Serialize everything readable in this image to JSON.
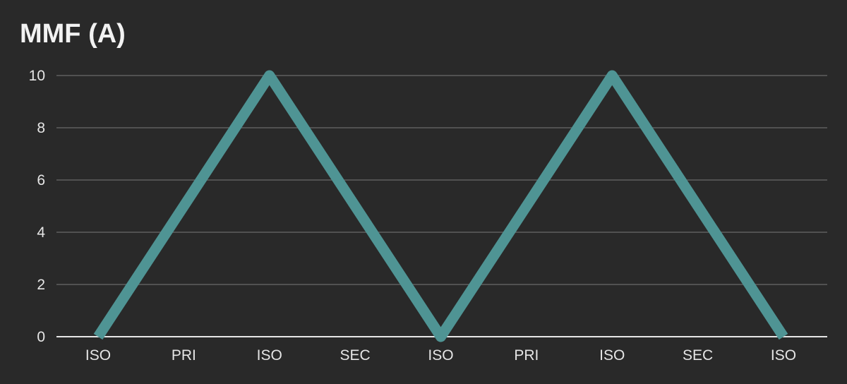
{
  "chart_data": {
    "type": "line",
    "title": "MMF (A)",
    "xlabel": "",
    "ylabel": "",
    "categories": [
      "ISO",
      "PRI",
      "ISO",
      "SEC",
      "ISO",
      "PRI",
      "ISO",
      "SEC",
      "ISO"
    ],
    "series": [
      {
        "values": [
          0,
          5,
          10,
          5,
          0,
          5,
          10,
          5,
          0
        ],
        "color": "#4f9494"
      }
    ],
    "ylim": [
      0,
      10
    ],
    "yticks": [
      0,
      2,
      4,
      6,
      8,
      10
    ],
    "grid": true,
    "legend": "none",
    "colors": {
      "background": "#292929",
      "grid": "#5f5f5f",
      "axis": "#e6e6e6",
      "text": "#e6e6e6"
    }
  }
}
